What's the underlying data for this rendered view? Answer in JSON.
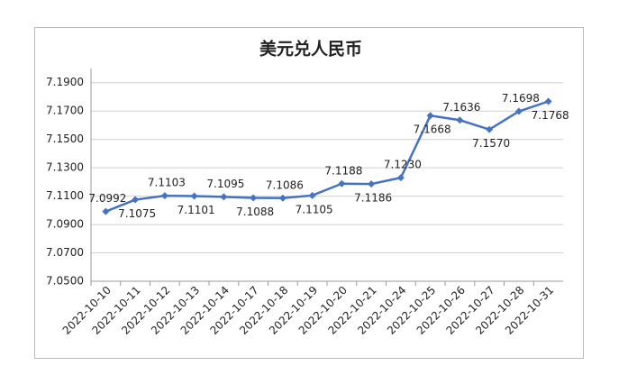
{
  "chart_data": {
    "type": "line",
    "title": "美元兑人民币",
    "categories": [
      "2022-10-10",
      "2022-10-11",
      "2022-10-12",
      "2022-10-13",
      "2022-10-14",
      "2022-10-17",
      "2022-10-18",
      "2022-10-19",
      "2022-10-20",
      "2022-10-21",
      "2022-10-24",
      "2022-10-25",
      "2022-10-26",
      "2022-10-27",
      "2022-10-28",
      "2022-10-31"
    ],
    "series": [
      {
        "color": "#4472c4",
        "values": [
          7.0992,
          7.1075,
          7.1103,
          7.1101,
          7.1095,
          7.1088,
          7.1086,
          7.1105,
          7.1188,
          7.1186,
          7.123,
          7.1668,
          7.1636,
          7.157,
          7.1698,
          7.1768
        ],
        "value_labels": [
          "7.0992",
          "7.1075",
          "7.1103",
          "7.1101",
          "7.1095",
          "7.1088",
          "7.1086",
          "7.1105",
          "7.1188",
          "7.1186",
          "7.1230",
          "7.1668",
          "7.1636",
          "7.1570",
          "7.1698",
          "7.1768"
        ]
      }
    ],
    "ylim": [
      7.05,
      7.2
    ],
    "yticks": [
      {
        "value": 7.05,
        "label": "7.0500"
      },
      {
        "value": 7.07,
        "label": "7.0700"
      },
      {
        "value": 7.09,
        "label": "7.0900"
      },
      {
        "value": 7.11,
        "label": "7.1100"
      },
      {
        "value": 7.13,
        "label": "7.1300"
      },
      {
        "value": 7.15,
        "label": "7.1500"
      },
      {
        "value": 7.17,
        "label": "7.1700"
      },
      {
        "value": 7.19,
        "label": "7.1900"
      }
    ],
    "grid": true
  }
}
